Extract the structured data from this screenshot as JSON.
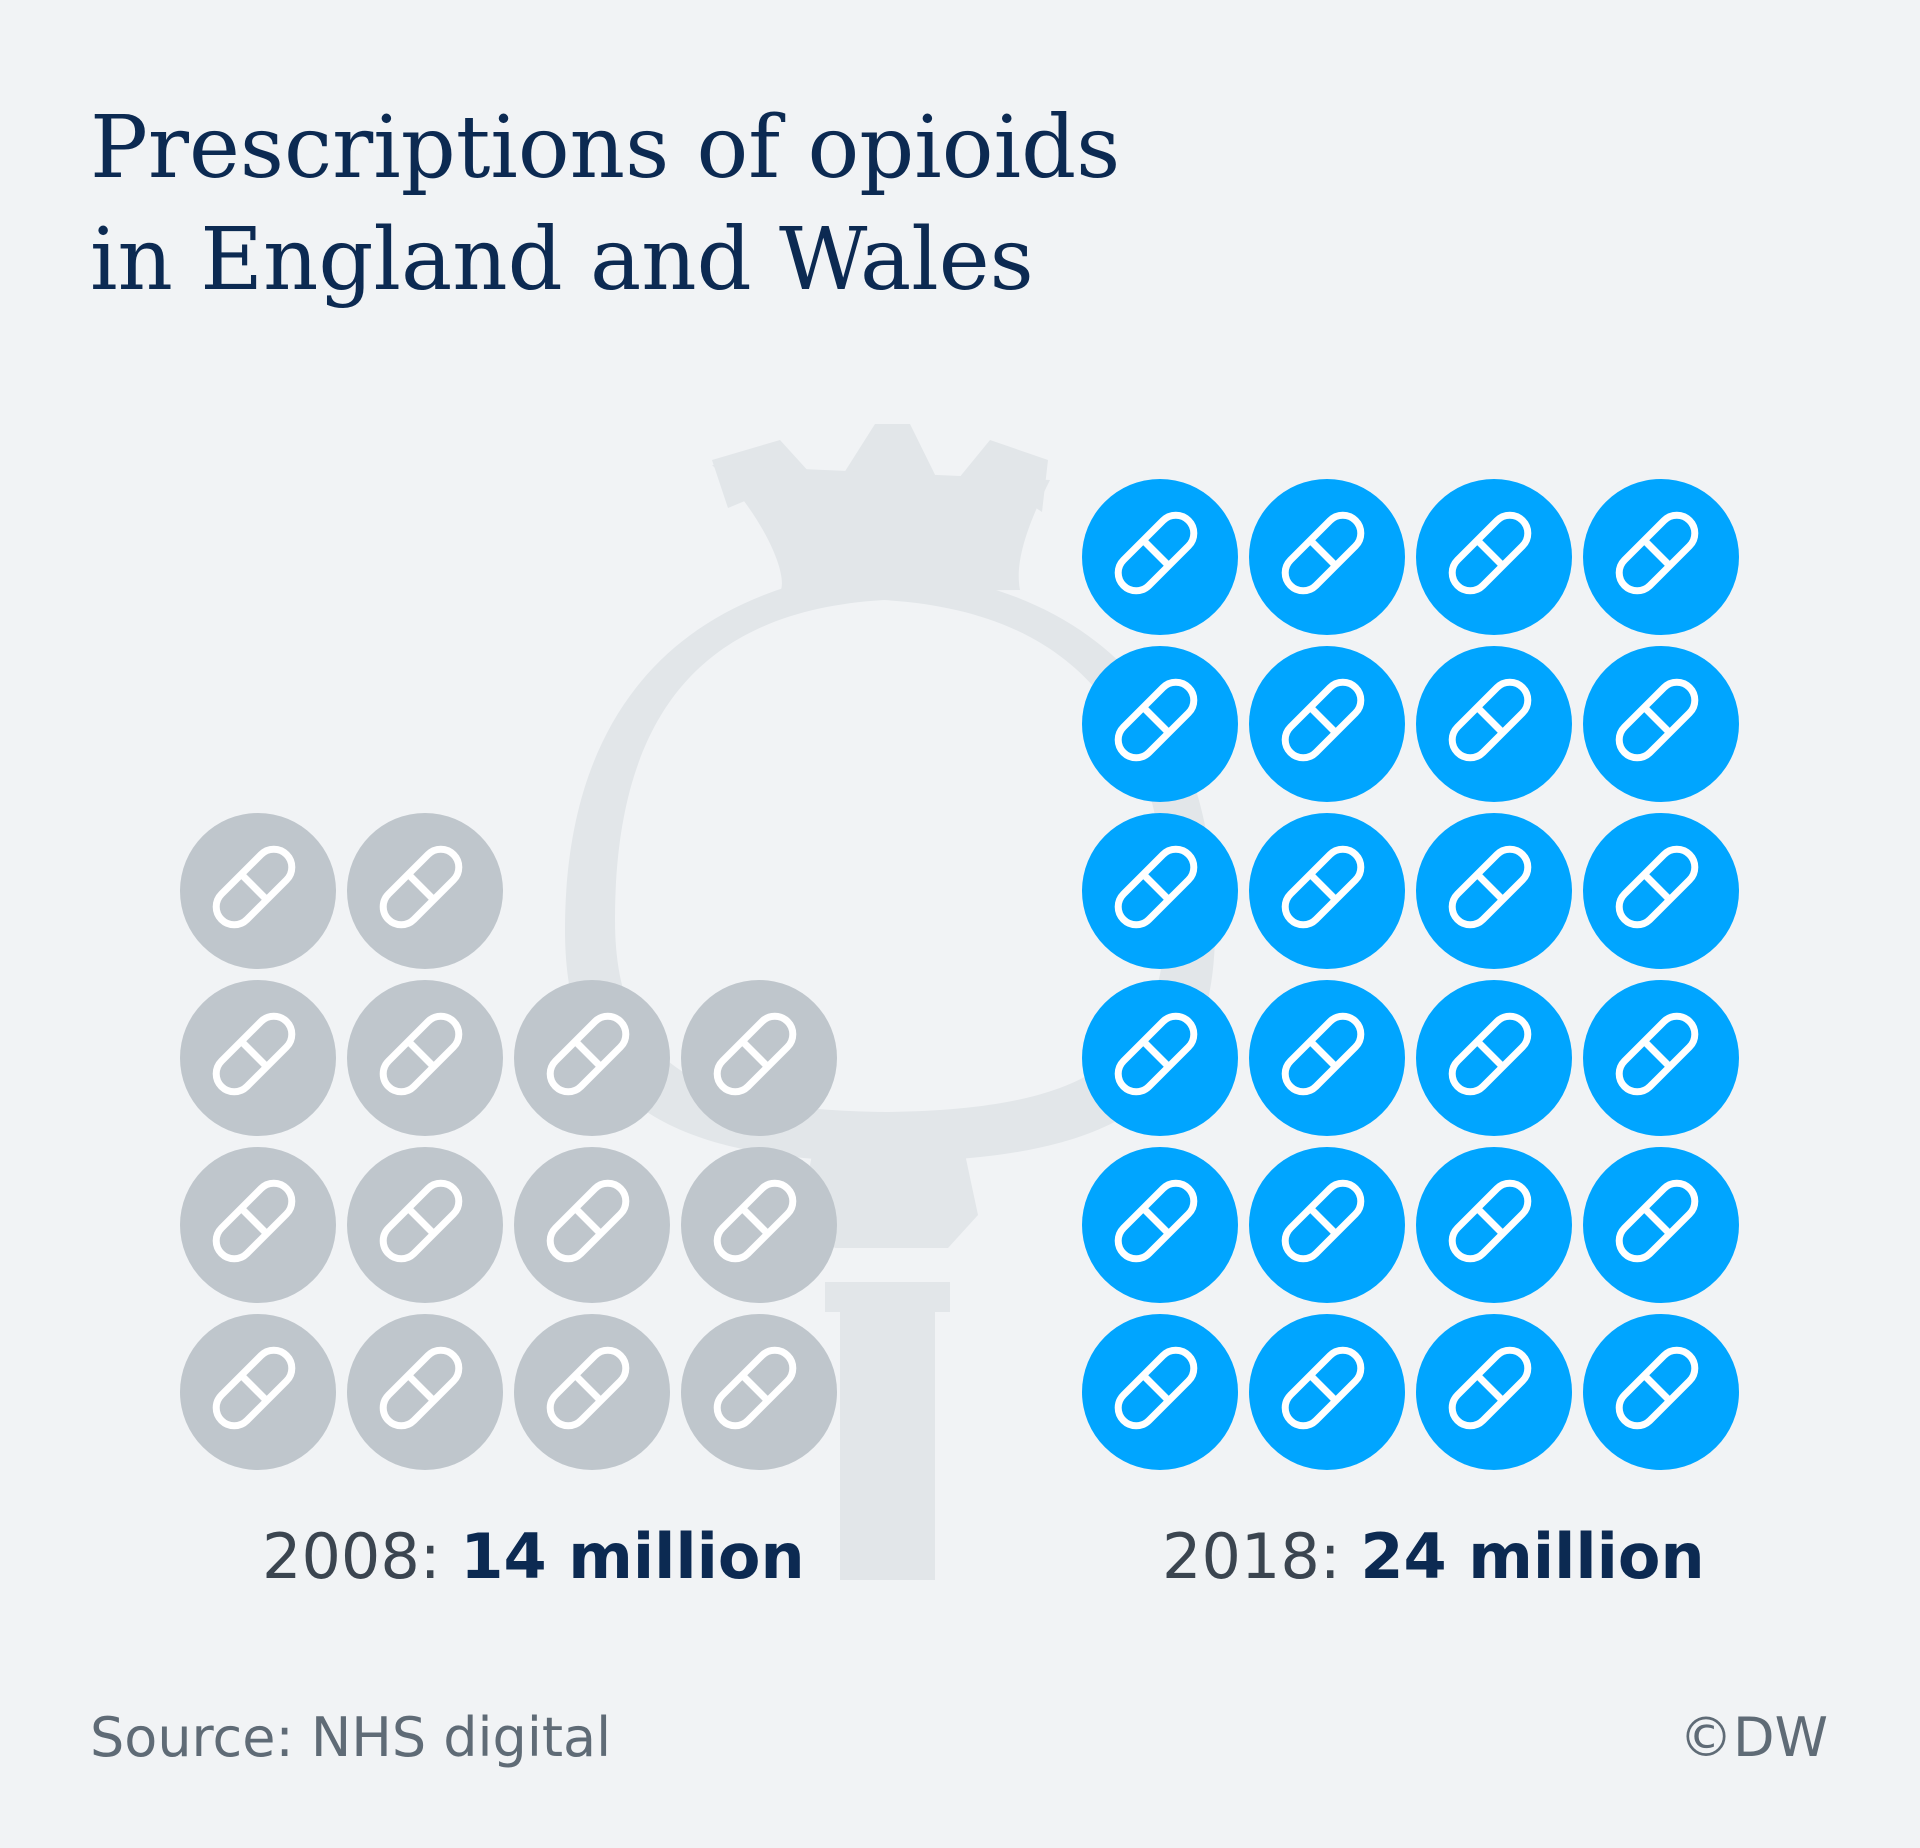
{
  "title": {
    "line1": "Prescriptions of opioids",
    "line2": "in England and Wales"
  },
  "chart_data": {
    "type": "pictogram",
    "unit_icon": "pill-icon",
    "categories": [
      "2008",
      "2018"
    ],
    "values": [
      14,
      24
    ],
    "series": [
      {
        "label": "14 million",
        "year": "2008",
        "value": 14,
        "color": "#bfc6cc"
      },
      {
        "label": "24 million",
        "year": "2018",
        "value": 24,
        "color": "#00a5ff"
      }
    ],
    "background_icon": "poppy-icon"
  },
  "labels": {
    "left_year": "2008:",
    "left_value": "14 million",
    "right_year": "2018:",
    "right_value": "24 million"
  },
  "footer": {
    "source": "Source: NHS digital",
    "credit": "©DW"
  },
  "colors": {
    "background": "#f1f3f5",
    "title": "#0c2a52",
    "gray_pill": "#bfc6cc",
    "blue_pill": "#00a5ff",
    "poppy": "#e2e6e9"
  }
}
